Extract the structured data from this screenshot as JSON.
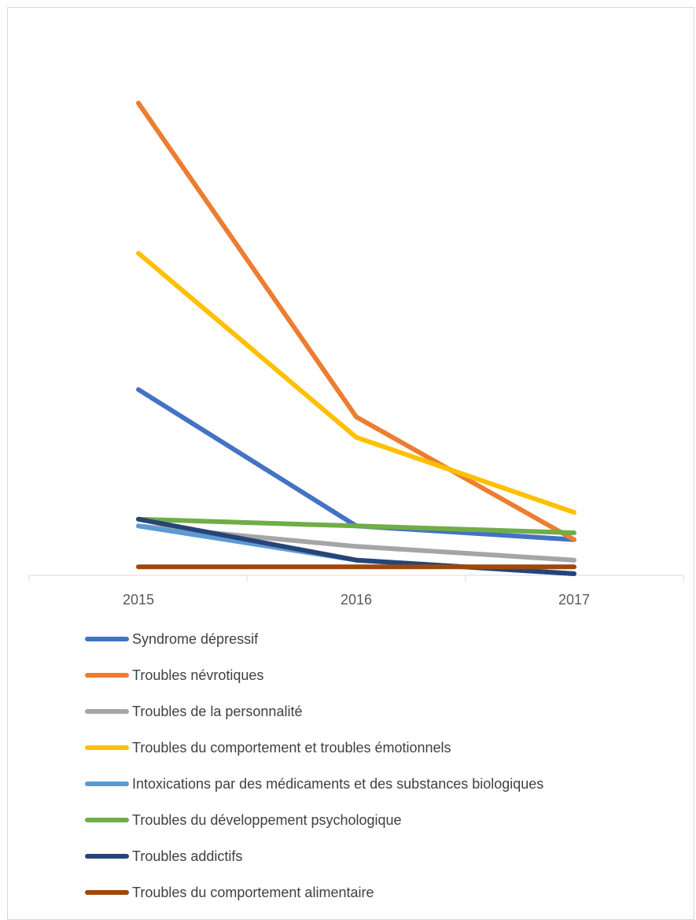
{
  "chart_data": {
    "type": "line",
    "title": "",
    "xlabel": "",
    "ylabel": "",
    "categories": [
      "2015",
      "2016",
      "2017"
    ],
    "ylim": [
      0,
      69
    ],
    "grid": false,
    "legend_position": "bottom",
    "series": [
      {
        "name": "Syndrome dépressif",
        "color": "#4472C4",
        "values": [
          27,
          7,
          5
        ]
      },
      {
        "name": "Troubles névrotiques",
        "color": "#ED7D31",
        "values": [
          69,
          23,
          5
        ]
      },
      {
        "name": "Troubles de la personnalité",
        "color": "#A5A5A5",
        "values": [
          7,
          4,
          2
        ]
      },
      {
        "name": "Troubles du comportement et troubles émotionnels",
        "color": "#FFC000",
        "values": [
          47,
          20,
          9
        ]
      },
      {
        "name": "Intoxications par des médicaments et des substances biologiques",
        "color": "#5B9BD5",
        "values": [
          7,
          2,
          0
        ]
      },
      {
        "name": "Troubles du développement psychologique",
        "color": "#70AD47",
        "values": [
          8,
          7,
          6
        ]
      },
      {
        "name": "Troubles addictifs",
        "color": "#264478",
        "values": [
          8,
          2,
          0
        ]
      },
      {
        "name": "Troubles du comportement alimentaire",
        "color": "#9E480E",
        "values": [
          1,
          1,
          1
        ]
      }
    ]
  }
}
